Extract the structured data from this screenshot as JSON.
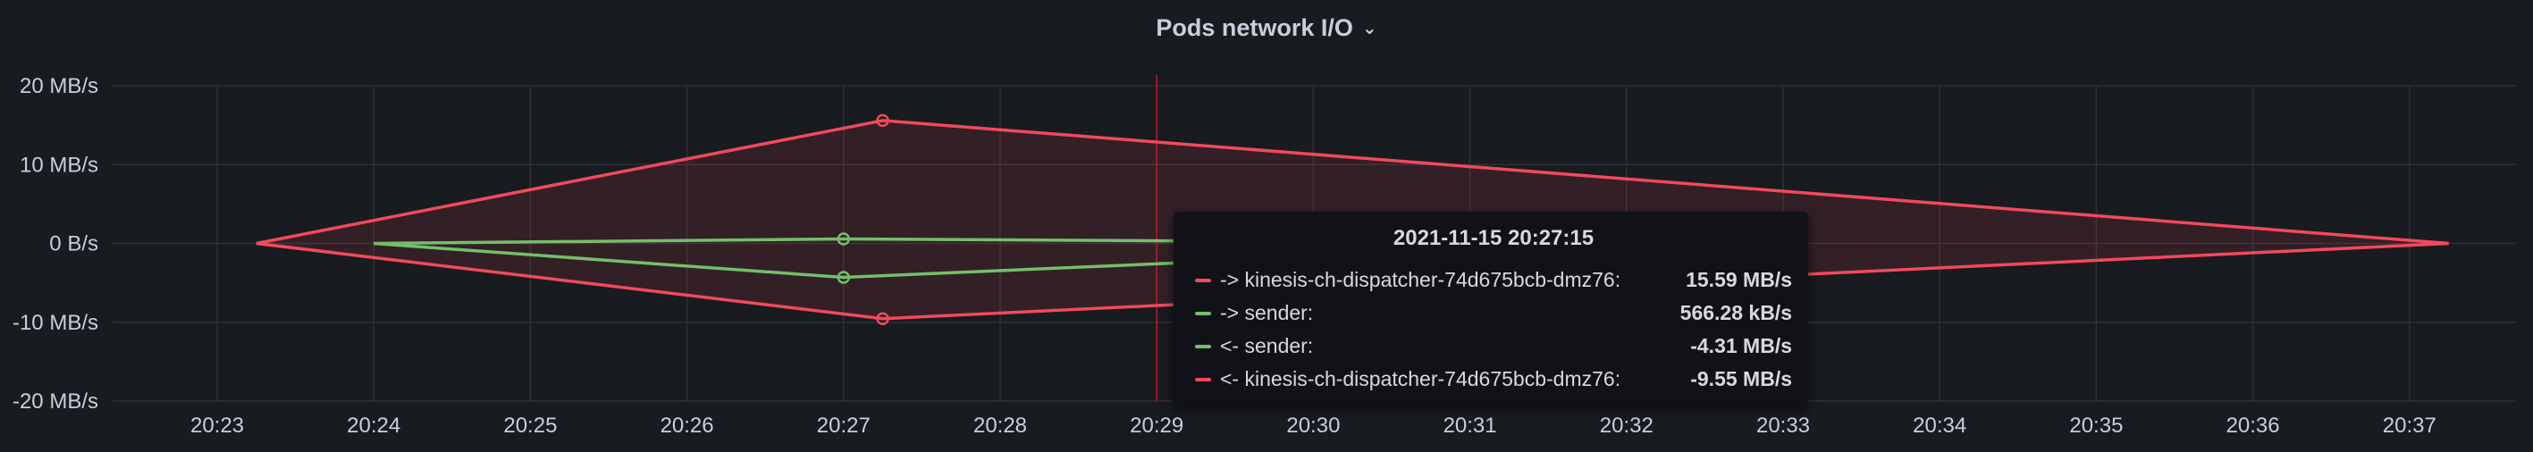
{
  "panel": {
    "title": "Pods network I/O"
  },
  "colors": {
    "red": "#f2495c",
    "green": "#73bf69"
  },
  "chart_data": {
    "type": "line",
    "title": "Pods network I/O",
    "ylim": [
      -20,
      20
    ],
    "y_tick_labels": [
      "20 MB/s",
      "10 MB/s",
      "0 B/s",
      "-10 MB/s",
      "-20 MB/s"
    ],
    "y_ticks": [
      20,
      10,
      0,
      -10,
      -20
    ],
    "x_ticks": [
      "20:23",
      "20:24",
      "20:25",
      "20:26",
      "20:27",
      "20:28",
      "20:29",
      "20:30",
      "20:31",
      "20:32",
      "20:33",
      "20:34",
      "20:35",
      "20:36",
      "20:37"
    ],
    "grid": true,
    "cursor_time": "20:29",
    "series": [
      {
        "name": "-> kinesis-ch-dispatcher-74d675bcb-dmz76:",
        "color": "#f2495c",
        "fill": true,
        "x": [
          "20:23:15",
          "20:27:15",
          "20:37:15"
        ],
        "y": [
          0,
          15.59,
          0
        ]
      },
      {
        "name": "-> sender:",
        "color": "#73bf69",
        "fill": false,
        "x": [
          "20:24:00",
          "20:27:00",
          "20:32:00"
        ],
        "y": [
          0,
          0.566,
          0
        ]
      },
      {
        "name": "<- sender:",
        "color": "#73bf69",
        "fill": false,
        "x": [
          "20:24:00",
          "20:27:00",
          "20:32:00"
        ],
        "y": [
          0,
          -4.31,
          0
        ]
      },
      {
        "name": "<- kinesis-ch-dispatcher-74d675bcb-dmz76:",
        "color": "#f2495c",
        "fill": true,
        "x": [
          "20:23:15",
          "20:27:15",
          "20:37:15"
        ],
        "y": [
          0,
          -9.55,
          0
        ]
      }
    ]
  },
  "tooltip": {
    "time": "2021-11-15 20:27:15",
    "rows": [
      {
        "name": "-> kinesis-ch-dispatcher-74d675bcb-dmz76:",
        "value": "15.59 MB/s",
        "color": "#f2495c"
      },
      {
        "name": "-> sender:",
        "value": "566.28 kB/s",
        "color": "#73bf69"
      },
      {
        "name": "<- sender:",
        "value": "-4.31 MB/s",
        "color": "#73bf69"
      },
      {
        "name": "<- kinesis-ch-dispatcher-74d675bcb-dmz76:",
        "value": "-9.55 MB/s",
        "color": "#f2495c"
      }
    ]
  }
}
